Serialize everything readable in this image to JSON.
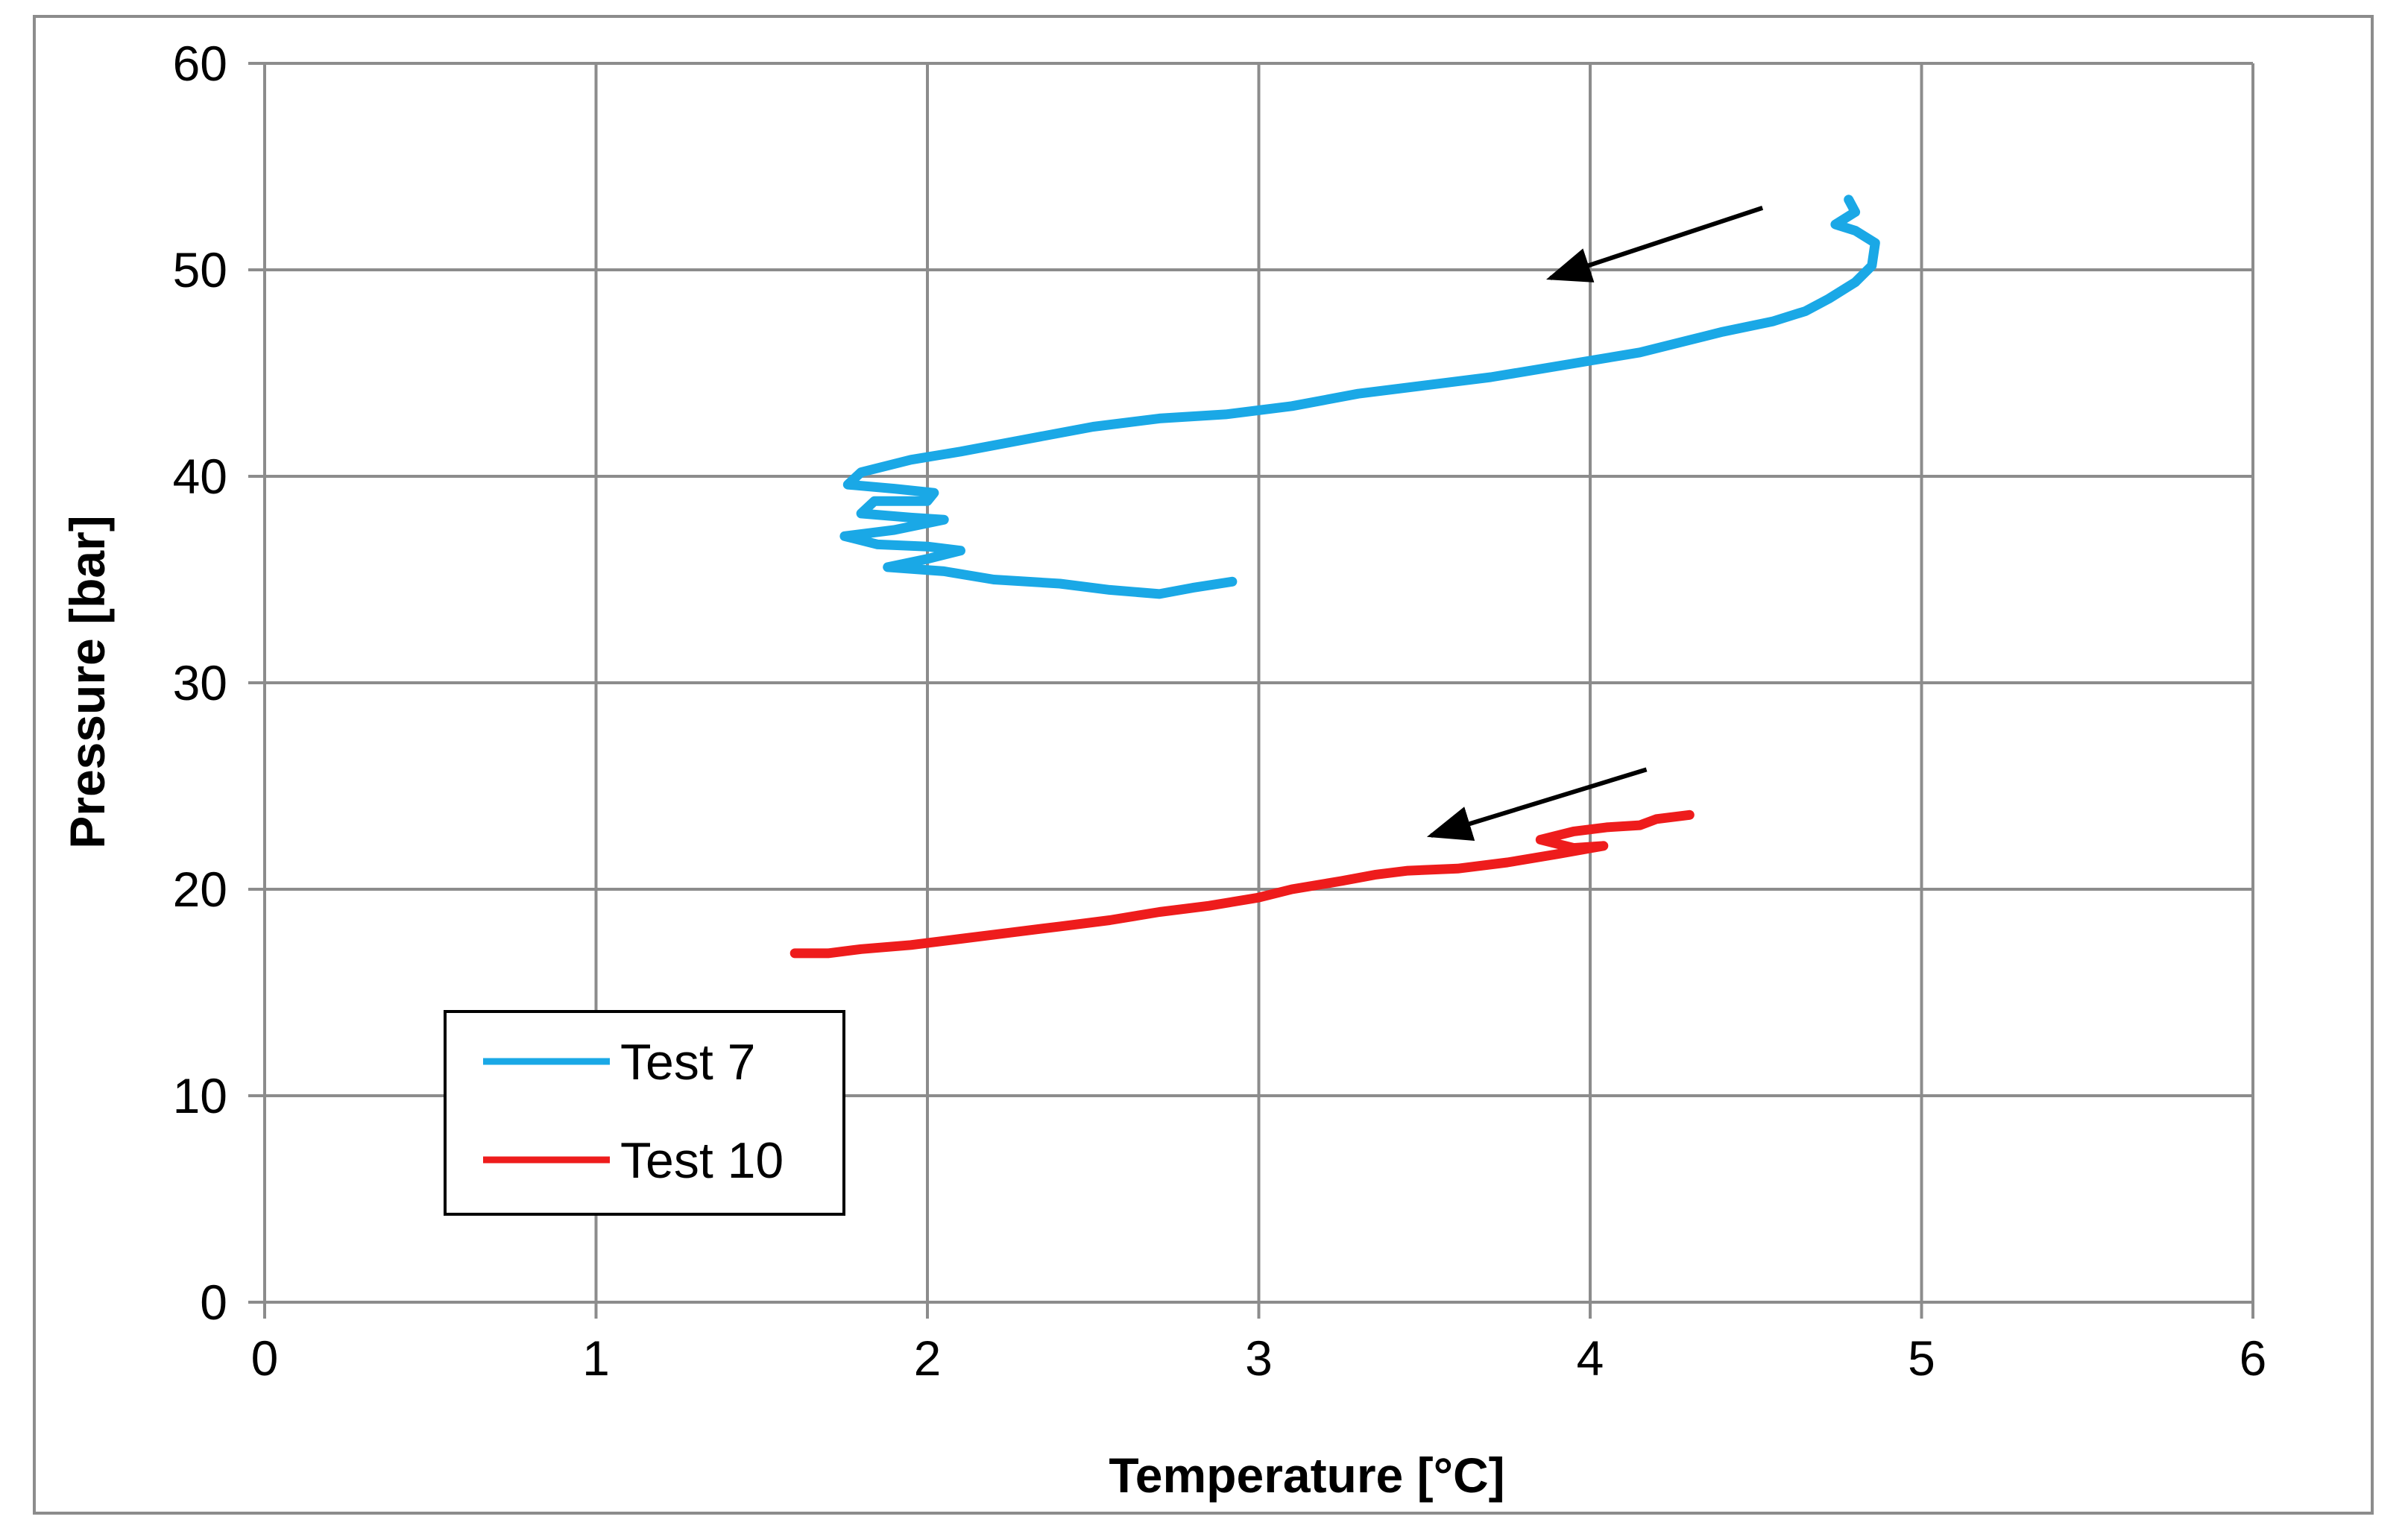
{
  "chart_data": {
    "type": "line",
    "title": "",
    "xlabel": "Temperature [°C]",
    "ylabel": "Pressure [bar]",
    "xlim": [
      0,
      6
    ],
    "ylim": [
      0,
      60
    ],
    "xticks": [
      "0",
      "1",
      "2",
      "3",
      "4",
      "5",
      "6"
    ],
    "yticks": [
      "0",
      "10",
      "20",
      "30",
      "40",
      "50",
      "60"
    ],
    "grid": true,
    "legend_position": "lower-left",
    "series": [
      {
        "name": "Test 7",
        "color": "#1aa8e6",
        "points": [
          [
            4.78,
            53.4
          ],
          [
            4.8,
            52.8
          ],
          [
            4.74,
            52.2
          ],
          [
            4.8,
            51.9
          ],
          [
            4.86,
            51.3
          ],
          [
            4.85,
            50.2
          ],
          [
            4.8,
            49.4
          ],
          [
            4.72,
            48.6
          ],
          [
            4.65,
            48.0
          ],
          [
            4.55,
            47.5
          ],
          [
            4.4,
            47.0
          ],
          [
            4.3,
            46.6
          ],
          [
            4.15,
            46.0
          ],
          [
            4.0,
            45.6
          ],
          [
            3.85,
            45.2
          ],
          [
            3.7,
            44.8
          ],
          [
            3.5,
            44.4
          ],
          [
            3.3,
            44.0
          ],
          [
            3.1,
            43.4
          ],
          [
            2.9,
            43.0
          ],
          [
            2.7,
            42.8
          ],
          [
            2.5,
            42.4
          ],
          [
            2.3,
            41.8
          ],
          [
            2.1,
            41.2
          ],
          [
            1.95,
            40.8
          ],
          [
            1.8,
            40.2
          ],
          [
            1.76,
            39.6
          ],
          [
            1.9,
            39.4
          ],
          [
            2.02,
            39.2
          ],
          [
            2.0,
            38.8
          ],
          [
            1.84,
            38.8
          ],
          [
            1.8,
            38.2
          ],
          [
            1.95,
            38.0
          ],
          [
            2.05,
            37.9
          ],
          [
            1.9,
            37.4
          ],
          [
            1.75,
            37.1
          ],
          [
            1.85,
            36.7
          ],
          [
            2.0,
            36.6
          ],
          [
            2.1,
            36.4
          ],
          [
            2.0,
            36.0
          ],
          [
            1.88,
            35.6
          ],
          [
            2.05,
            35.4
          ],
          [
            2.2,
            35.0
          ],
          [
            2.4,
            34.8
          ],
          [
            2.55,
            34.5
          ],
          [
            2.7,
            34.3
          ],
          [
            2.8,
            34.6
          ],
          [
            2.92,
            34.9
          ]
        ]
      },
      {
        "name": "Test 10",
        "color": "#ee1c1c",
        "points": [
          [
            4.3,
            23.6
          ],
          [
            4.2,
            23.4
          ],
          [
            4.15,
            23.1
          ],
          [
            4.05,
            23.0
          ],
          [
            3.95,
            22.8
          ],
          [
            3.85,
            22.4
          ],
          [
            3.95,
            22.0
          ],
          [
            4.04,
            22.1
          ],
          [
            3.9,
            21.7
          ],
          [
            3.75,
            21.3
          ],
          [
            3.6,
            21.0
          ],
          [
            3.45,
            20.9
          ],
          [
            3.35,
            20.7
          ],
          [
            3.25,
            20.4
          ],
          [
            3.1,
            20.0
          ],
          [
            3.0,
            19.6
          ],
          [
            2.85,
            19.2
          ],
          [
            2.7,
            18.9
          ],
          [
            2.55,
            18.5
          ],
          [
            2.4,
            18.2
          ],
          [
            2.25,
            17.9
          ],
          [
            2.1,
            17.6
          ],
          [
            1.95,
            17.3
          ],
          [
            1.8,
            17.1
          ],
          [
            1.7,
            16.9
          ],
          [
            1.6,
            16.9
          ]
        ]
      }
    ],
    "annotations": [
      {
        "type": "arrow",
        "from": [
          4.52,
          53.0
        ],
        "to": [
          3.88,
          49.6
        ]
      },
      {
        "type": "arrow",
        "from": [
          4.17,
          25.8
        ],
        "to": [
          3.52,
          22.6
        ]
      }
    ]
  }
}
